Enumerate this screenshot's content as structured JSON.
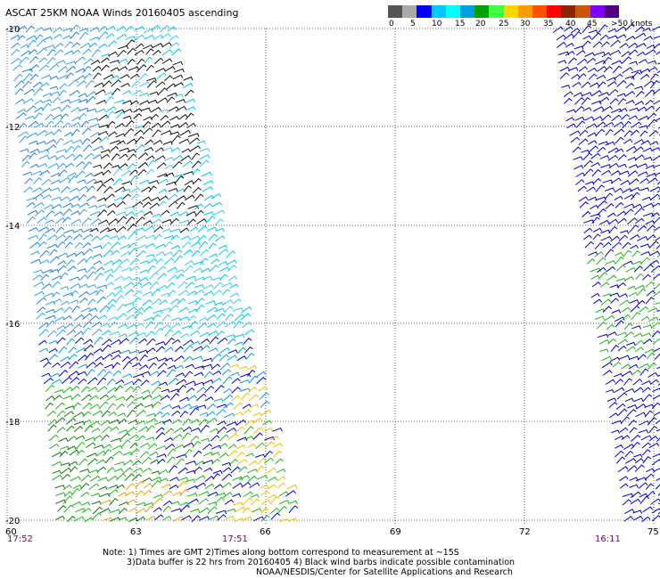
{
  "title": "ASCAT 25KM NOAA Winds 20160405 ascending",
  "colorbar": {
    "colors": [
      "#555555",
      "#aaaaaa",
      "#0000ff",
      "#00c8ff",
      "#00ffff",
      "#00a0e0",
      "#00a000",
      "#40ff40",
      "#ffd700",
      "#ff9900",
      "#ff5000",
      "#ff0000",
      "#8b2500",
      "#cc5500",
      "#8000ff",
      "#500080"
    ],
    "labels": [
      "0",
      "5",
      "10",
      "15",
      "20",
      "25",
      "30",
      "35",
      "40",
      "45",
      ">50 knots"
    ]
  },
  "map": {
    "lat_labels": [
      "-10",
      "-12",
      "-14",
      "-16",
      "-18",
      "-20"
    ],
    "lon_labels": [
      "60",
      "63",
      "66",
      "69",
      "72",
      "75"
    ],
    "times": [
      "17:52",
      "17:51",
      "16:11"
    ],
    "note_lines": [
      "Note: 1) Times are GMT 2)Times along bottom correspond to measurement at ~15S",
      "3)Data buffer is 22 hrs from 20160405 4) Black wind barbs indicate possible contamination",
      "NOAA/NESDIS/Center for Satellite Applications and Research"
    ]
  }
}
